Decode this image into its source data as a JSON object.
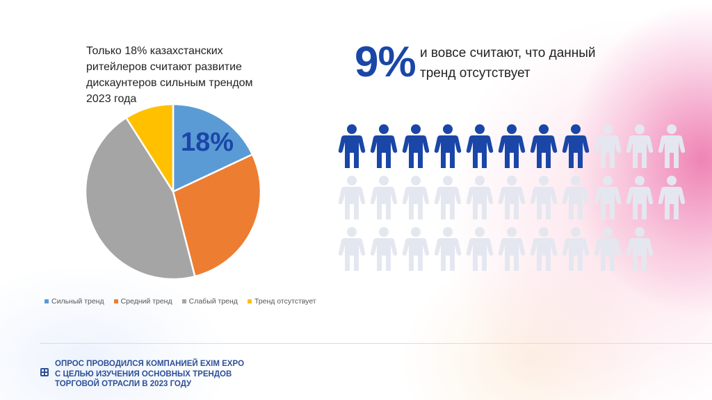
{
  "chart_data": {
    "type": "pie",
    "title": "Только 18% казахстанских ритейлеров считают развитие дискаунтеров сильным трендом 2023 года",
    "series": [
      {
        "name": "Сильный тренд",
        "value": 18,
        "color": "#5b9bd5"
      },
      {
        "name": "Средний тренд",
        "value": 28,
        "color": "#ed7d31"
      },
      {
        "name": "Слабый тренд",
        "value": 45,
        "color": "#a5a5a5"
      },
      {
        "name": "Тренд отсутствует",
        "value": 9,
        "color": "#ffc000"
      }
    ],
    "data_label": "18%",
    "legend": "bottom"
  },
  "stat": {
    "value": "9%",
    "text": "и вовсе считают, что данный тренд отсутствует"
  },
  "pictogram": {
    "total": 32,
    "filled": 8,
    "filled_color": "#1a46a8",
    "empty_color": "#e4e7ef"
  },
  "footer": {
    "text": "ОПРОС ПРОВОДИЛСЯ КОМПАНИЕЙ EXIM EXPO\nС ЦЕЛЬЮ ИЗУЧЕНИЯ ОСНОВНЫХ ТРЕНДОВ\nТОРГОВОЙ ОТРАСЛИ В 2023 ГОДУ"
  }
}
